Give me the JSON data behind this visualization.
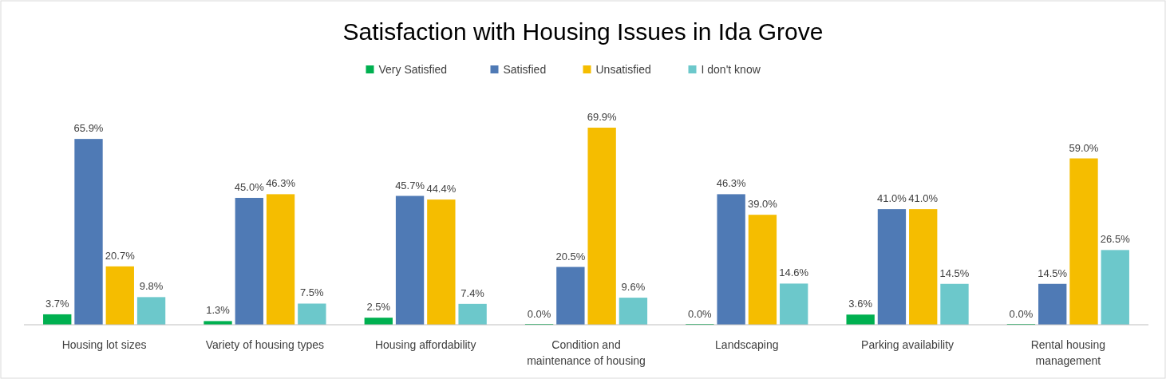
{
  "chart_data": {
    "type": "bar",
    "title": "Satisfaction with Housing Issues in Ida Grove",
    "categories": [
      "Housing lot sizes",
      "Variety of housing types",
      "Housing affordability",
      "Condition and maintenance of housing",
      "Landscaping",
      "Parking availability",
      "Rental housing management"
    ],
    "series": [
      {
        "name": "Very Satisfied",
        "color": "#00b050",
        "values": [
          3.7,
          1.3,
          2.5,
          0.0,
          0.0,
          3.6,
          0.0
        ],
        "value_labels": [
          "3.7%",
          "1.3%",
          "2.5%",
          "0.0%",
          "0.0%",
          "3.6%",
          "0.0%"
        ]
      },
      {
        "name": "Satisfied",
        "color": "#4f7ab5",
        "values": [
          65.9,
          45.0,
          45.7,
          20.5,
          46.3,
          41.0,
          14.5
        ],
        "value_labels": [
          "65.9%",
          "45.0%",
          "45.7%",
          "20.5%",
          "46.3%",
          "41.0%",
          "14.5%"
        ]
      },
      {
        "name": "Unsatisfied",
        "color": "#f5bd00",
        "values": [
          20.7,
          46.3,
          44.4,
          69.9,
          39.0,
          41.0,
          59.0
        ],
        "value_labels": [
          "20.7%",
          "46.3%",
          "44.4%",
          "69.9%",
          "39.0%",
          "41.0%",
          "59.0%"
        ]
      },
      {
        "name": "I don't know",
        "color": "#6cc8cb",
        "values": [
          9.8,
          7.5,
          7.4,
          9.6,
          14.6,
          14.5,
          26.5
        ],
        "value_labels": [
          "9.8%",
          "7.5%",
          "7.4%",
          "9.6%",
          "14.6%",
          "14.5%",
          "26.5%"
        ]
      }
    ],
    "legend": "top",
    "grid": false
  }
}
